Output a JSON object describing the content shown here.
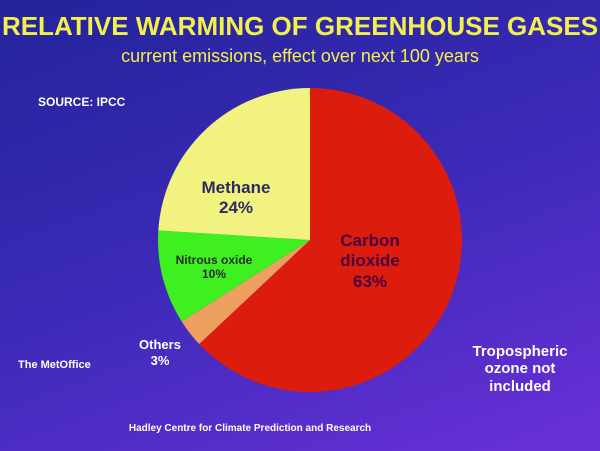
{
  "chart_data": {
    "type": "pie",
    "title": "RELATIVE WARMING OF GREENHOUSE GASES",
    "subtitle": "current emissions, effect over next 100 years",
    "source": "SOURCE: IPCC",
    "logo": "The MetOffice",
    "note": "Tropospheric ozone not included",
    "footer": "Hadley Centre for Climate Prediction and Research",
    "categories": [
      "Carbon dioxide",
      "Others",
      "Nitrous oxide",
      "Methane"
    ],
    "values": [
      63,
      3,
      10,
      24
    ],
    "value_labels": [
      "63%",
      "3%",
      "10%",
      "24%"
    ],
    "colors": [
      "#dc1c0c",
      "#eea060",
      "#3ef020",
      "#f2f280"
    ]
  }
}
